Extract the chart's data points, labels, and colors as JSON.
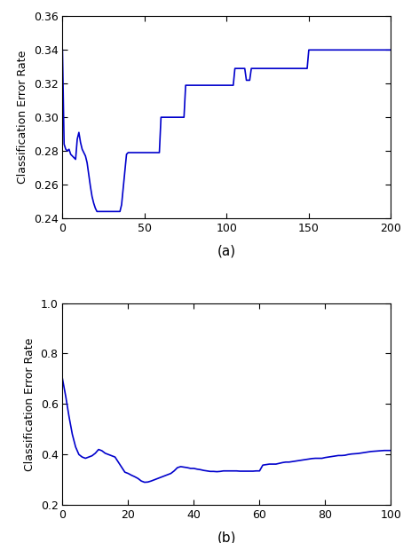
{
  "line_color": "#0000CC",
  "line_width": 1.2,
  "ylabel": "Classification Error Rate",
  "xlabel_a": "(a)",
  "xlabel_b": "(b)",
  "label_fontsize": 9,
  "tick_fontsize": 9,
  "caption_fontsize": 11,
  "plot_a": {
    "xlim": [
      0,
      200
    ],
    "ylim": [
      0.24,
      0.36
    ],
    "xticks": [
      0,
      50,
      100,
      150,
      200
    ],
    "yticks": [
      0.24,
      0.26,
      0.28,
      0.3,
      0.32,
      0.34,
      0.36
    ],
    "x": [
      0,
      1,
      2,
      3,
      4,
      5,
      6,
      7,
      8,
      9,
      10,
      11,
      12,
      13,
      14,
      15,
      16,
      17,
      18,
      19,
      20,
      21,
      22,
      23,
      24,
      25,
      26,
      27,
      28,
      29,
      30,
      31,
      32,
      33,
      34,
      35,
      36,
      37,
      38,
      39,
      40,
      41,
      42,
      43,
      44,
      45,
      46,
      47,
      48,
      49,
      50,
      51,
      52,
      53,
      54,
      55,
      56,
      57,
      58,
      59,
      60,
      61,
      62,
      63,
      64,
      65,
      66,
      67,
      68,
      69,
      70,
      71,
      72,
      73,
      74,
      75,
      76,
      77,
      78,
      79,
      80,
      81,
      82,
      83,
      84,
      85,
      86,
      87,
      88,
      89,
      90,
      91,
      92,
      93,
      94,
      95,
      96,
      97,
      98,
      99,
      100,
      101,
      102,
      103,
      104,
      105,
      106,
      107,
      108,
      109,
      110,
      111,
      112,
      113,
      114,
      115,
      116,
      117,
      118,
      119,
      120,
      121,
      122,
      123,
      124,
      125,
      126,
      127,
      128,
      129,
      130,
      131,
      132,
      133,
      134,
      135,
      136,
      137,
      138,
      139,
      140,
      141,
      142,
      143,
      144,
      145,
      146,
      147,
      148,
      149,
      150,
      151,
      152,
      153,
      154,
      155,
      156,
      157,
      158,
      159,
      160,
      161,
      162,
      163,
      164,
      165,
      166,
      167,
      168,
      169,
      170,
      171,
      172,
      173,
      174,
      175,
      176,
      177,
      178,
      179,
      180,
      181,
      182,
      183,
      184,
      185,
      186,
      187,
      188,
      189,
      190,
      191,
      192,
      193,
      194,
      195,
      196,
      197,
      198,
      199,
      200
    ],
    "y": [
      0.34,
      0.284,
      0.281,
      0.28,
      0.281,
      0.278,
      0.277,
      0.276,
      0.275,
      0.287,
      0.291,
      0.285,
      0.281,
      0.279,
      0.277,
      0.273,
      0.266,
      0.259,
      0.253,
      0.249,
      0.246,
      0.244,
      0.244,
      0.244,
      0.244,
      0.244,
      0.244,
      0.244,
      0.244,
      0.244,
      0.244,
      0.244,
      0.244,
      0.244,
      0.244,
      0.244,
      0.248,
      0.258,
      0.268,
      0.278,
      0.279,
      0.279,
      0.279,
      0.279,
      0.279,
      0.279,
      0.279,
      0.279,
      0.279,
      0.279,
      0.279,
      0.279,
      0.279,
      0.279,
      0.279,
      0.279,
      0.279,
      0.279,
      0.279,
      0.279,
      0.3,
      0.3,
      0.3,
      0.3,
      0.3,
      0.3,
      0.3,
      0.3,
      0.3,
      0.3,
      0.3,
      0.3,
      0.3,
      0.3,
      0.3,
      0.319,
      0.319,
      0.319,
      0.319,
      0.319,
      0.319,
      0.319,
      0.319,
      0.319,
      0.319,
      0.319,
      0.319,
      0.319,
      0.319,
      0.319,
      0.319,
      0.319,
      0.319,
      0.319,
      0.319,
      0.319,
      0.319,
      0.319,
      0.319,
      0.319,
      0.319,
      0.319,
      0.319,
      0.319,
      0.319,
      0.329,
      0.329,
      0.329,
      0.329,
      0.329,
      0.329,
      0.329,
      0.322,
      0.322,
      0.322,
      0.329,
      0.329,
      0.329,
      0.329,
      0.329,
      0.329,
      0.329,
      0.329,
      0.329,
      0.329,
      0.329,
      0.329,
      0.329,
      0.329,
      0.329,
      0.329,
      0.329,
      0.329,
      0.329,
      0.329,
      0.329,
      0.329,
      0.329,
      0.329,
      0.329,
      0.329,
      0.329,
      0.329,
      0.329,
      0.329,
      0.329,
      0.329,
      0.329,
      0.329,
      0.329,
      0.34,
      0.34,
      0.34,
      0.34,
      0.34,
      0.34,
      0.34,
      0.34,
      0.34,
      0.34,
      0.34,
      0.34,
      0.34,
      0.34,
      0.34,
      0.34,
      0.34,
      0.34,
      0.34,
      0.34,
      0.34,
      0.34,
      0.34,
      0.34,
      0.34,
      0.34,
      0.34,
      0.34,
      0.34,
      0.34,
      0.34,
      0.34,
      0.34,
      0.34,
      0.34,
      0.34,
      0.34,
      0.34,
      0.34,
      0.34,
      0.34,
      0.34,
      0.34,
      0.34,
      0.34,
      0.34,
      0.34,
      0.34,
      0.34,
      0.34,
      0.34
    ]
  },
  "plot_b": {
    "xlim": [
      0,
      100
    ],
    "ylim": [
      0.2,
      1.0
    ],
    "xticks": [
      0,
      20,
      40,
      60,
      80,
      100
    ],
    "yticks": [
      0.2,
      0.4,
      0.6,
      0.8,
      1.0
    ],
    "x": [
      0,
      1,
      2,
      3,
      4,
      5,
      6,
      7,
      8,
      9,
      10,
      11,
      12,
      13,
      14,
      15,
      16,
      17,
      18,
      19,
      20,
      21,
      22,
      23,
      24,
      25,
      26,
      27,
      28,
      29,
      30,
      31,
      32,
      33,
      34,
      35,
      36,
      37,
      38,
      39,
      40,
      41,
      42,
      43,
      44,
      45,
      46,
      47,
      48,
      49,
      50,
      51,
      52,
      53,
      54,
      55,
      56,
      57,
      58,
      59,
      60,
      61,
      62,
      63,
      64,
      65,
      66,
      67,
      68,
      69,
      70,
      71,
      72,
      73,
      74,
      75,
      76,
      77,
      78,
      79,
      80,
      81,
      82,
      83,
      84,
      85,
      86,
      87,
      88,
      89,
      90,
      91,
      92,
      93,
      94,
      95,
      96,
      97,
      98,
      99,
      100
    ],
    "y": [
      0.7,
      0.63,
      0.55,
      0.48,
      0.43,
      0.4,
      0.39,
      0.385,
      0.39,
      0.395,
      0.405,
      0.42,
      0.415,
      0.405,
      0.4,
      0.395,
      0.39,
      0.37,
      0.35,
      0.33,
      0.325,
      0.318,
      0.312,
      0.305,
      0.295,
      0.29,
      0.291,
      0.295,
      0.3,
      0.305,
      0.31,
      0.315,
      0.32,
      0.325,
      0.335,
      0.348,
      0.352,
      0.35,
      0.348,
      0.345,
      0.345,
      0.342,
      0.34,
      0.337,
      0.335,
      0.333,
      0.333,
      0.332,
      0.333,
      0.335,
      0.335,
      0.335,
      0.335,
      0.335,
      0.334,
      0.334,
      0.334,
      0.334,
      0.334,
      0.335,
      0.335,
      0.358,
      0.36,
      0.362,
      0.362,
      0.362,
      0.365,
      0.368,
      0.37,
      0.37,
      0.372,
      0.374,
      0.376,
      0.378,
      0.38,
      0.382,
      0.384,
      0.385,
      0.385,
      0.385,
      0.388,
      0.39,
      0.392,
      0.394,
      0.396,
      0.396,
      0.397,
      0.4,
      0.402,
      0.403,
      0.404,
      0.406,
      0.408,
      0.41,
      0.412,
      0.413,
      0.414,
      0.415,
      0.416,
      0.416,
      0.416
    ]
  }
}
